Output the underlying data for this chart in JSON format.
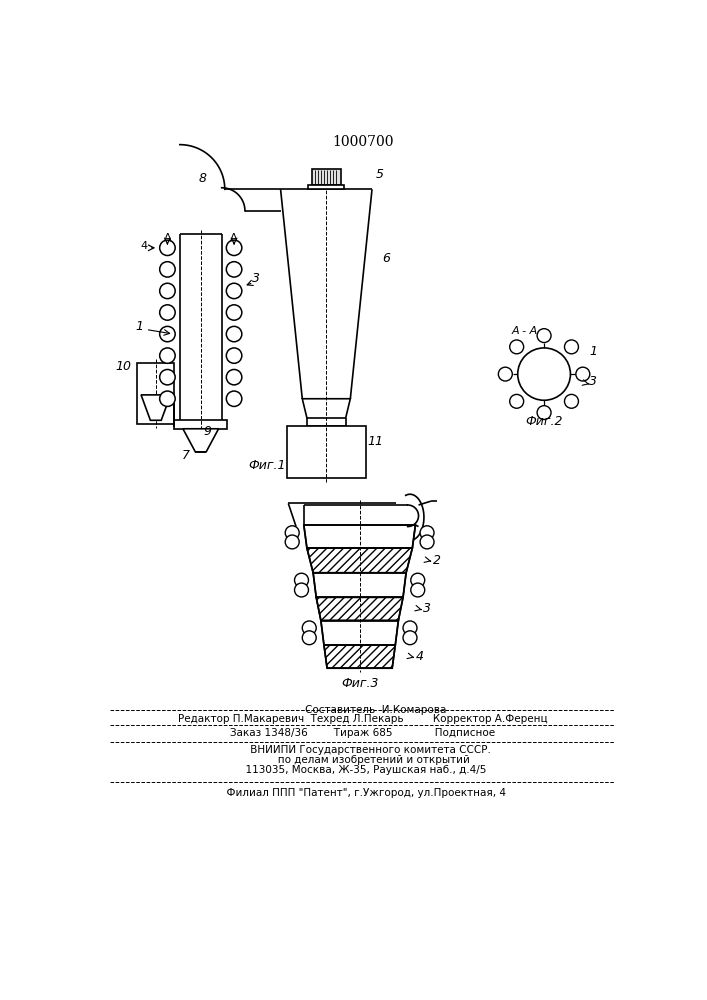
{
  "title": "1000700",
  "bg_color": "#ffffff",
  "line_color": "#000000",
  "fig1_caption": "Фиг.1",
  "fig2_caption": "Фиг.2",
  "fig3_caption": "Фиг.3",
  "fig2_label": "А - А",
  "footer_line1": "        Составитель  И.Комарова",
  "footer_line2": "Редактор П.Макаревич  Техред Л.Пекарь         Корректор А.Ференц",
  "footer_line3": "Заказ 1348/36        Тираж 685             Подписное",
  "footer_line4": "     ВНИИПИ Государственного комитета СССР.",
  "footer_line5": "       по делам изобретений и открытий",
  "footer_line6": "  113035, Москва, Ж-35, Раушская наб., д.4/5",
  "footer_line7": "  Филиал ППП \"Патент\", г.Ужгород, ул.Проектная, 4"
}
